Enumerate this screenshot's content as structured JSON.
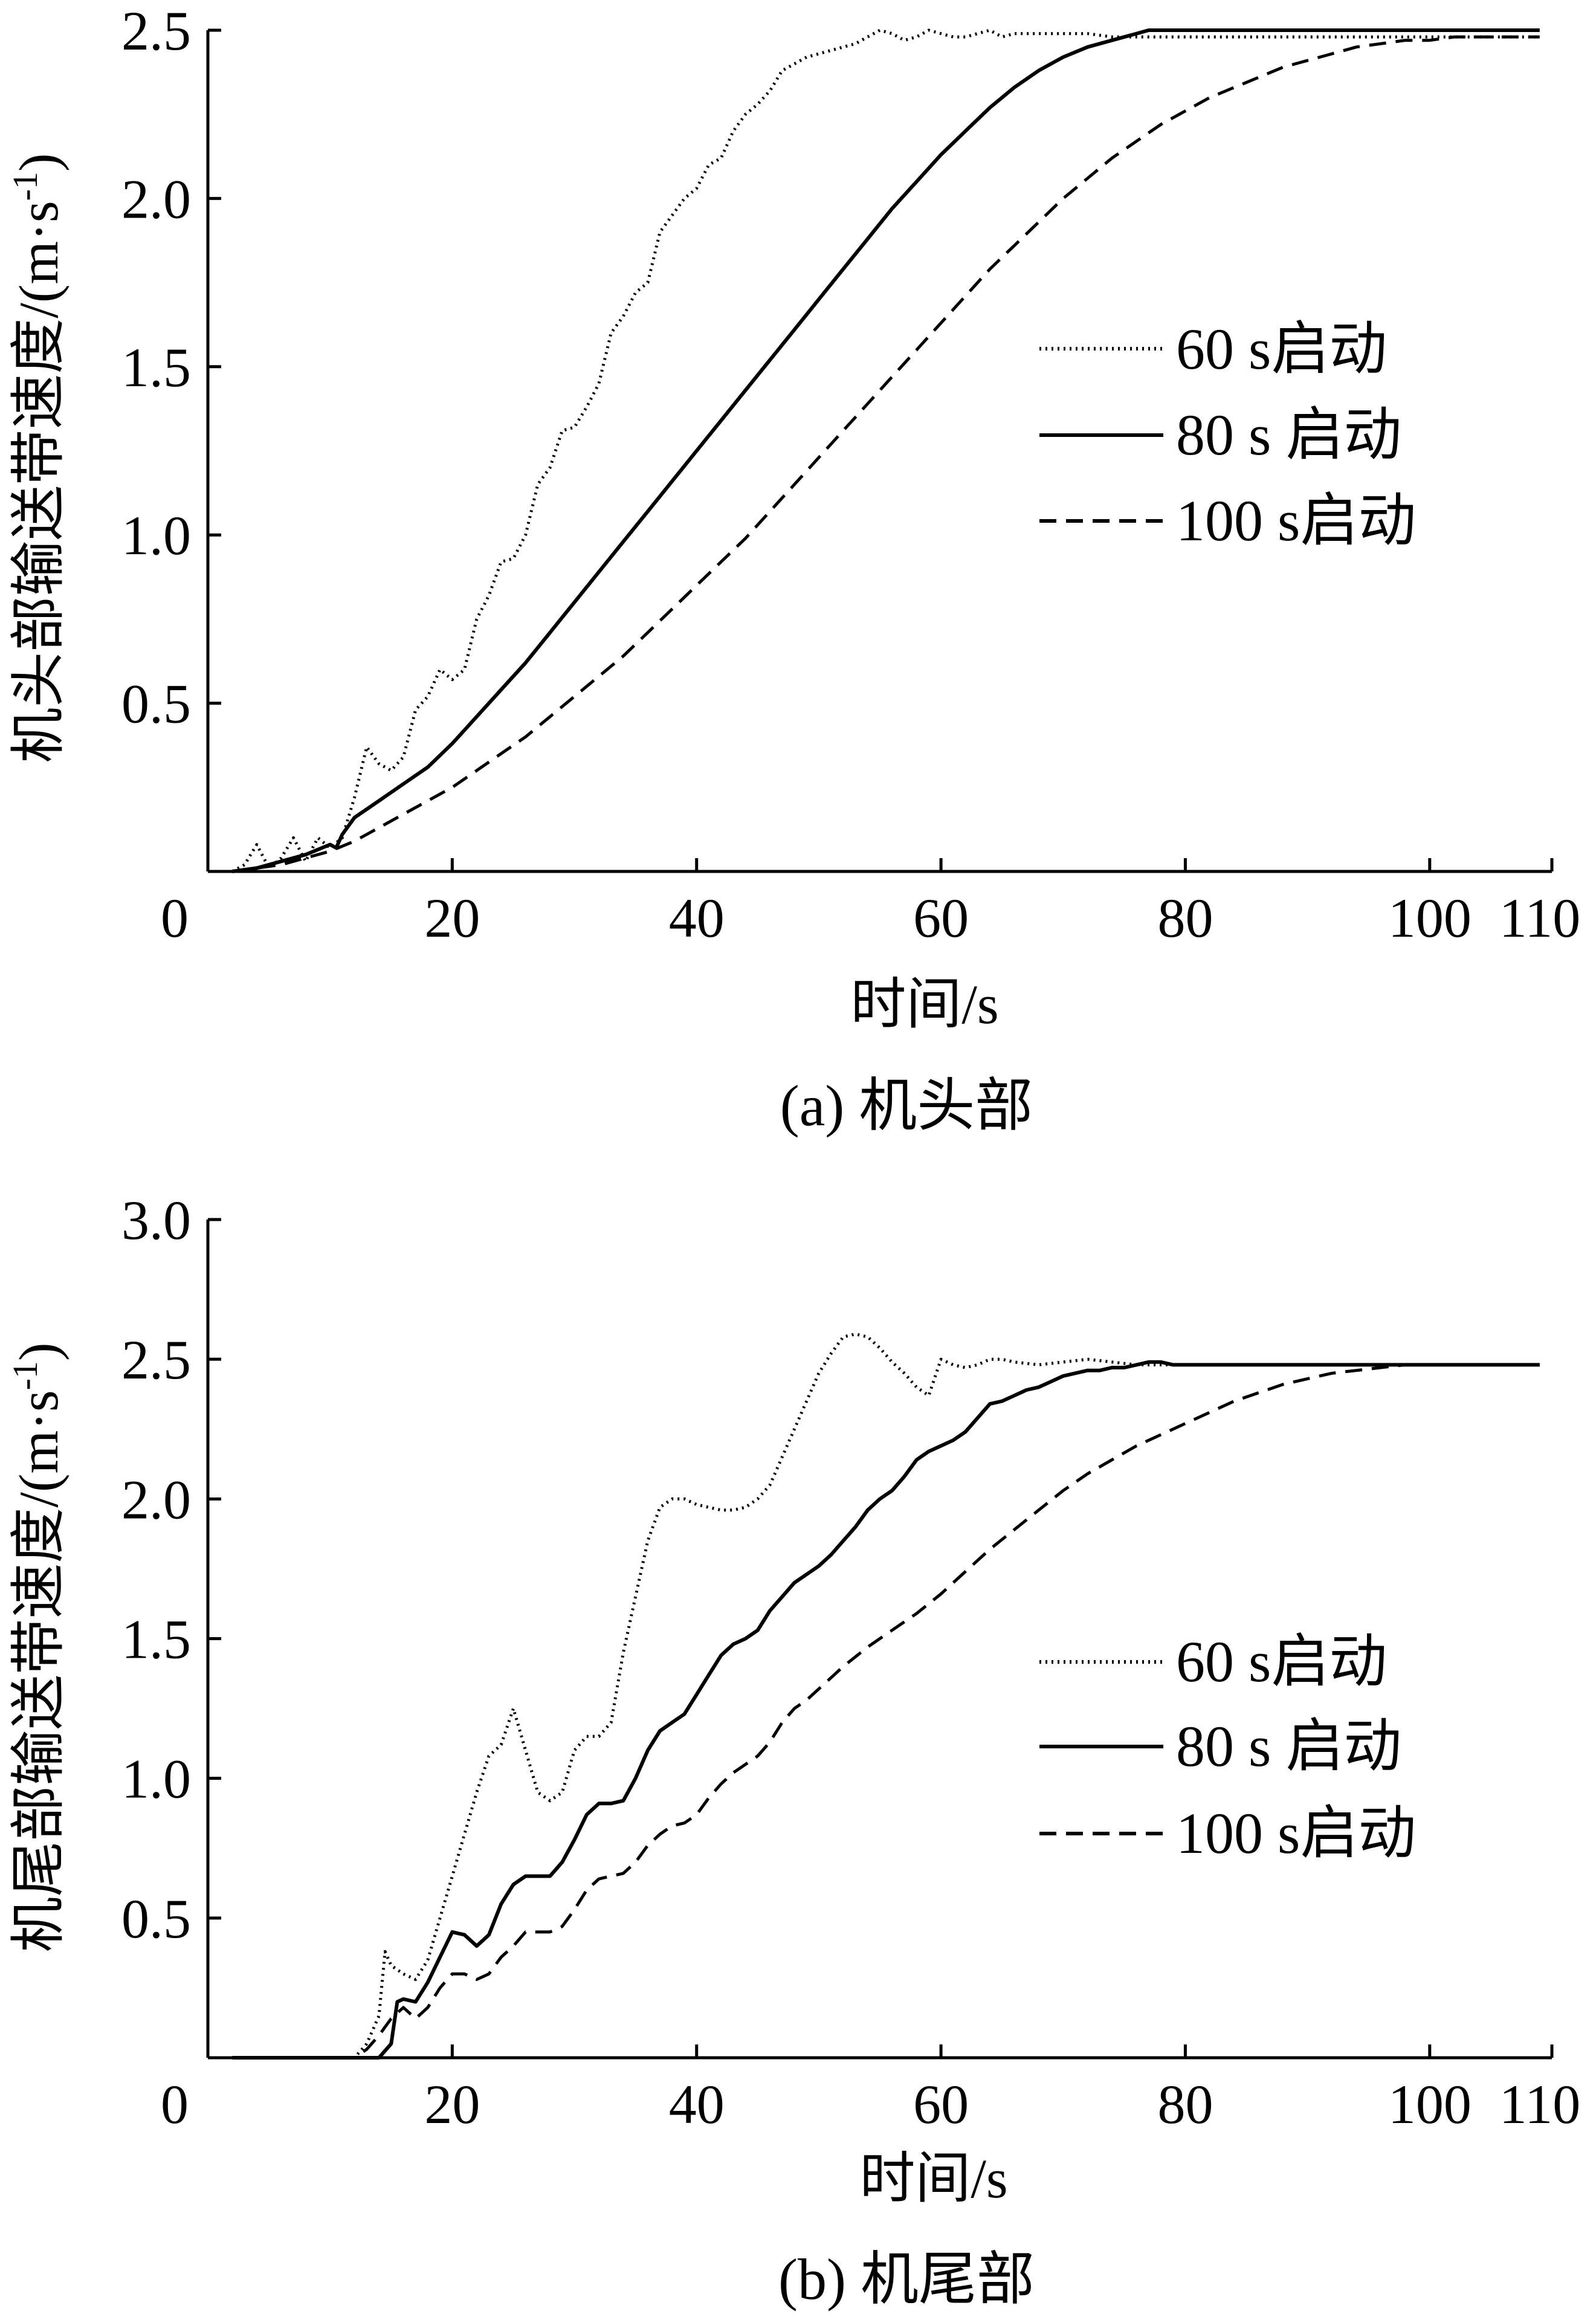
{
  "chart_data": [
    {
      "type": "line",
      "caption": "(a) 机头部",
      "xlabel": "时间/s",
      "ylabel": "机头部输送带速度/(m·s",
      "ylabel_sup": "-1",
      "ylabel_close": ")",
      "xlim": [
        0,
        110
      ],
      "ylim": [
        0,
        2.5
      ],
      "xticks": [
        0,
        20,
        40,
        60,
        80,
        100,
        110
      ],
      "xtick_labels": [
        "0",
        "20",
        "40",
        "60",
        "80",
        "100",
        "110"
      ],
      "yticks": [
        0.5,
        1.0,
        1.5,
        2.0,
        2.5
      ],
      "ytick_labels": [
        "0.5",
        "1.0",
        "1.5",
        "2.0",
        "2.5"
      ],
      "legend_position": "center-right",
      "series": [
        {
          "name": "60 s启动",
          "style": "dotted",
          "x": [
            2,
            3,
            4,
            5,
            6,
            7,
            8,
            9,
            10,
            11,
            12,
            13,
            14,
            15,
            16,
            17,
            18,
            19,
            20,
            21,
            22,
            23,
            24,
            25,
            26,
            27,
            28,
            29,
            30,
            31,
            32,
            33,
            34,
            35,
            36,
            37,
            38,
            39,
            40,
            41,
            42,
            43,
            44,
            45,
            46,
            47,
            48,
            49,
            50,
            51,
            52,
            53,
            54,
            55,
            56,
            57,
            58,
            59,
            60,
            61,
            62,
            63,
            64,
            65,
            66,
            67,
            68,
            70,
            72,
            74,
            76,
            78,
            80,
            90,
            100,
            109
          ],
          "y": [
            0.0,
            0.02,
            0.08,
            0.01,
            0.04,
            0.1,
            0.03,
            0.1,
            0.07,
            0.1,
            0.22,
            0.37,
            0.32,
            0.3,
            0.34,
            0.48,
            0.52,
            0.6,
            0.57,
            0.6,
            0.75,
            0.82,
            0.92,
            0.93,
            1.0,
            1.15,
            1.2,
            1.31,
            1.32,
            1.38,
            1.45,
            1.6,
            1.65,
            1.72,
            1.75,
            1.9,
            1.95,
            2.0,
            2.03,
            2.1,
            2.12,
            2.2,
            2.25,
            2.28,
            2.32,
            2.38,
            2.4,
            2.42,
            2.43,
            2.44,
            2.45,
            2.46,
            2.48,
            2.5,
            2.49,
            2.47,
            2.48,
            2.5,
            2.49,
            2.48,
            2.48,
            2.49,
            2.5,
            2.48,
            2.49,
            2.49,
            2.49,
            2.49,
            2.49,
            2.48,
            2.48,
            2.48,
            2.48,
            2.48,
            2.48,
            2.48
          ]
        },
        {
          "name": "80 s 启动",
          "style": "solid",
          "x": [
            2,
            4,
            6,
            8,
            10,
            10.5,
            11,
            12,
            14,
            16,
            18,
            20,
            22,
            24,
            26,
            28,
            30,
            32,
            34,
            36,
            38,
            40,
            42,
            44,
            46,
            48,
            50,
            52,
            54,
            56,
            58,
            60,
            62,
            64,
            66,
            68,
            70,
            72,
            74,
            76,
            77,
            80,
            90,
            100,
            109
          ],
          "y": [
            0.0,
            0.01,
            0.03,
            0.05,
            0.08,
            0.07,
            0.11,
            0.16,
            0.21,
            0.26,
            0.31,
            0.38,
            0.46,
            0.54,
            0.62,
            0.71,
            0.8,
            0.89,
            0.98,
            1.07,
            1.16,
            1.25,
            1.34,
            1.43,
            1.52,
            1.61,
            1.7,
            1.79,
            1.88,
            1.97,
            2.05,
            2.13,
            2.2,
            2.27,
            2.33,
            2.38,
            2.42,
            2.45,
            2.47,
            2.49,
            2.5,
            2.5,
            2.5,
            2.5,
            2.5
          ]
        },
        {
          "name": "100 s启动",
          "style": "dashed",
          "x": [
            2,
            4,
            6,
            8,
            10,
            12,
            14,
            16,
            18,
            20,
            22,
            24,
            26,
            28,
            30,
            32,
            34,
            36,
            38,
            40,
            42,
            44,
            46,
            48,
            50,
            52,
            54,
            56,
            58,
            60,
            62,
            64,
            66,
            68,
            70,
            72,
            74,
            76,
            78,
            80,
            82,
            84,
            86,
            88,
            90,
            92,
            94,
            96,
            98,
            100,
            102,
            104,
            106,
            109
          ],
          "y": [
            0.0,
            0.01,
            0.02,
            0.04,
            0.06,
            0.09,
            0.13,
            0.17,
            0.21,
            0.25,
            0.3,
            0.35,
            0.4,
            0.46,
            0.52,
            0.58,
            0.64,
            0.71,
            0.78,
            0.85,
            0.92,
            0.99,
            1.07,
            1.15,
            1.23,
            1.31,
            1.39,
            1.47,
            1.55,
            1.63,
            1.71,
            1.79,
            1.86,
            1.93,
            2.0,
            2.06,
            2.12,
            2.17,
            2.22,
            2.26,
            2.3,
            2.33,
            2.36,
            2.39,
            2.41,
            2.43,
            2.45,
            2.46,
            2.47,
            2.47,
            2.48,
            2.48,
            2.48,
            2.48
          ]
        }
      ]
    },
    {
      "type": "line",
      "caption": "(b) 机尾部",
      "xlabel": "时间/s",
      "ylabel": "机尾部输送带速度/(m·s",
      "ylabel_sup": "-1",
      "ylabel_close": ")",
      "xlim": [
        0,
        110
      ],
      "ylim": [
        0,
        3.0
      ],
      "xticks": [
        0,
        20,
        40,
        60,
        80,
        100,
        110
      ],
      "xtick_labels": [
        "0",
        "20",
        "40",
        "60",
        "80",
        "100",
        "110"
      ],
      "yticks": [
        0.5,
        1.0,
        1.5,
        2.0,
        2.5,
        3.0
      ],
      "ytick_labels": [
        "0.5",
        "1.0",
        "1.5",
        "2.0",
        "2.5",
        "3.0"
      ],
      "legend_position": "center-right",
      "series": [
        {
          "name": "60 s启动",
          "style": "dotted",
          "x": [
            2,
            10,
            12,
            13,
            14,
            14.5,
            15,
            16,
            17,
            18,
            19,
            20,
            21,
            22,
            23,
            24,
            25,
            26,
            27,
            28,
            29,
            30,
            31,
            32,
            33,
            34,
            35,
            36,
            37,
            38,
            39,
            40,
            41,
            42,
            43,
            44,
            45,
            46,
            47,
            48,
            49,
            50,
            51,
            52,
            53,
            54,
            55,
            56,
            57,
            58,
            59,
            60,
            61,
            62,
            63,
            64,
            65,
            66,
            68,
            70,
            72,
            74,
            76,
            78,
            80,
            90,
            100,
            109
          ],
          "y": [
            0.0,
            0.0,
            0.0,
            0.05,
            0.15,
            0.38,
            0.33,
            0.3,
            0.28,
            0.35,
            0.5,
            0.65,
            0.8,
            0.95,
            1.08,
            1.12,
            1.25,
            1.1,
            0.95,
            0.92,
            0.95,
            1.1,
            1.15,
            1.15,
            1.2,
            1.45,
            1.65,
            1.85,
            1.97,
            2.0,
            2.0,
            1.98,
            1.97,
            1.96,
            1.96,
            1.97,
            2.0,
            2.05,
            2.15,
            2.25,
            2.35,
            2.45,
            2.52,
            2.58,
            2.59,
            2.58,
            2.54,
            2.49,
            2.45,
            2.4,
            2.37,
            2.5,
            2.48,
            2.47,
            2.48,
            2.5,
            2.5,
            2.49,
            2.48,
            2.49,
            2.5,
            2.49,
            2.48,
            2.48,
            2.48,
            2.48,
            2.48,
            2.48
          ]
        },
        {
          "name": "80 s 启动",
          "style": "solid",
          "x": [
            2,
            12,
            14,
            15,
            15.5,
            16,
            17,
            18,
            19,
            20,
            21,
            22,
            23,
            24,
            25,
            26,
            27,
            28,
            29,
            30,
            31,
            32,
            33,
            34,
            35,
            36,
            37,
            38,
            39,
            40,
            41,
            42,
            43,
            44,
            45,
            46,
            47,
            48,
            49,
            50,
            51,
            52,
            53,
            54,
            55,
            56,
            57,
            58,
            59,
            60,
            61,
            62,
            63,
            64,
            65,
            66,
            67,
            68,
            69,
            70,
            71,
            72,
            73,
            74,
            75,
            76,
            77,
            78,
            79,
            80,
            90,
            100,
            109
          ],
          "y": [
            0.0,
            0.0,
            0.0,
            0.05,
            0.2,
            0.21,
            0.2,
            0.27,
            0.36,
            0.45,
            0.44,
            0.4,
            0.44,
            0.55,
            0.62,
            0.65,
            0.65,
            0.65,
            0.7,
            0.78,
            0.87,
            0.91,
            0.91,
            0.92,
            1.0,
            1.1,
            1.17,
            1.2,
            1.23,
            1.3,
            1.37,
            1.44,
            1.48,
            1.5,
            1.53,
            1.6,
            1.65,
            1.7,
            1.73,
            1.76,
            1.8,
            1.85,
            1.9,
            1.96,
            2.0,
            2.03,
            2.08,
            2.14,
            2.17,
            2.19,
            2.21,
            2.24,
            2.29,
            2.34,
            2.35,
            2.37,
            2.39,
            2.4,
            2.42,
            2.44,
            2.45,
            2.46,
            2.46,
            2.47,
            2.47,
            2.48,
            2.49,
            2.49,
            2.48,
            2.48,
            2.48,
            2.48,
            2.48
          ]
        },
        {
          "name": "100 s启动",
          "style": "dashed",
          "x": [
            2,
            11,
            12,
            13,
            14,
            15,
            16,
            17,
            18,
            19,
            20,
            21,
            22,
            23,
            24,
            25,
            26,
            27,
            28,
            29,
            30,
            31,
            32,
            33,
            34,
            35,
            36,
            37,
            38,
            39,
            40,
            41,
            42,
            43,
            44,
            45,
            46,
            47,
            48,
            49,
            50,
            52,
            54,
            56,
            58,
            60,
            62,
            64,
            66,
            68,
            70,
            72,
            74,
            76,
            78,
            80,
            82,
            84,
            86,
            88,
            90,
            92,
            94,
            96,
            98,
            100,
            102,
            104,
            106,
            109
          ],
          "y": [
            0.0,
            0.0,
            0.0,
            0.03,
            0.08,
            0.14,
            0.18,
            0.14,
            0.18,
            0.25,
            0.3,
            0.3,
            0.28,
            0.3,
            0.36,
            0.4,
            0.45,
            0.45,
            0.45,
            0.47,
            0.53,
            0.6,
            0.64,
            0.65,
            0.66,
            0.7,
            0.76,
            0.8,
            0.83,
            0.84,
            0.87,
            0.93,
            0.98,
            1.02,
            1.05,
            1.08,
            1.13,
            1.2,
            1.25,
            1.28,
            1.32,
            1.4,
            1.47,
            1.53,
            1.59,
            1.66,
            1.74,
            1.82,
            1.89,
            1.96,
            2.03,
            2.09,
            2.14,
            2.19,
            2.23,
            2.27,
            2.31,
            2.35,
            2.38,
            2.41,
            2.43,
            2.45,
            2.46,
            2.47,
            2.48,
            2.48,
            2.48,
            2.48,
            2.48,
            2.48
          ]
        }
      ]
    }
  ]
}
